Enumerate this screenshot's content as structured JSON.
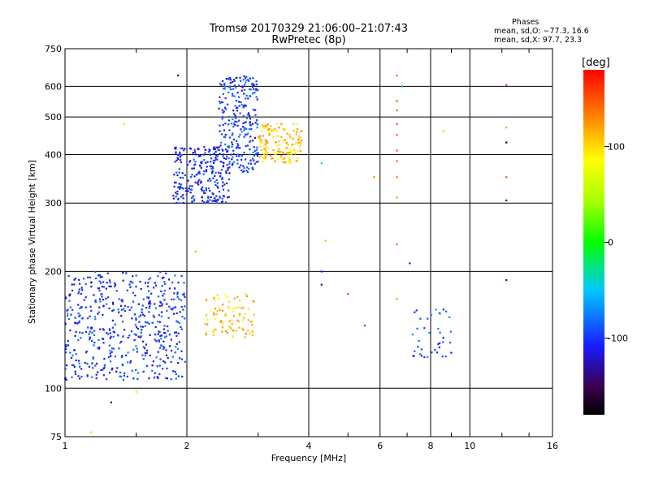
{
  "header": {
    "title": "Tromsø 20170329 21:06:00–21:07:43",
    "subtitle": "RwPretec (8p)"
  },
  "phases_box": {
    "heading": "Phases",
    "line_o": "mean, sd,O: −77.3, 16.6",
    "line_x": "mean, sd,X:  97.7, 23.3"
  },
  "chart_data": {
    "type": "scatter",
    "title": "Tromsø 20170329 21:06:00–21:07:43",
    "subtitle": "RwPretec (8p)",
    "xlabel": "Frequency [MHz]",
    "ylabel": "Stationary phase Virtual Height [km]",
    "xscale": "log",
    "yscale": "log",
    "xlim": [
      1,
      16
    ],
    "ylim": [
      75,
      750
    ],
    "xticks": [
      1,
      2,
      4,
      6,
      8,
      10,
      16
    ],
    "xtick_labels": [
      "1",
      "2",
      "4",
      "6",
      "8",
      "10",
      "16"
    ],
    "yticks": [
      75,
      100,
      200,
      300,
      400,
      500,
      600,
      750
    ],
    "ytick_labels": [
      "75",
      "100",
      "200",
      "300",
      "400",
      "500",
      "600",
      "750"
    ],
    "grid": true,
    "colorbar": {
      "label": "[deg]",
      "range": [
        -180,
        180
      ],
      "ticks": [
        100,
        0,
        -100
      ],
      "tick_labels": [
        "100",
        "0",
        "-100"
      ]
    },
    "clusters": [
      {
        "freq_range": [
          1.0,
          1.98
        ],
        "height_range": [
          105,
          200
        ],
        "phase": -100,
        "count": 520
      },
      {
        "freq_range": [
          1.85,
          2.55
        ],
        "height_range": [
          300,
          420
        ],
        "phase": -105,
        "count": 260
      },
      {
        "freq_range": [
          2.4,
          3.0
        ],
        "height_range": [
          360,
          640
        ],
        "phase": -95,
        "count": 260
      },
      {
        "freq_range": [
          3.0,
          3.85
        ],
        "height_range": [
          380,
          480
        ],
        "phase": 105,
        "count": 150
      },
      {
        "freq_range": [
          2.2,
          2.95
        ],
        "height_range": [
          135,
          175
        ],
        "phase": 110,
        "count": 90
      },
      {
        "freq_range": [
          7.2,
          9.0
        ],
        "height_range": [
          120,
          160
        ],
        "phase": -90,
        "count": 40
      }
    ],
    "points": [
      {
        "x": 6.6,
        "y": 640,
        "phase": 145
      },
      {
        "x": 6.6,
        "y": 550,
        "phase": 150
      },
      {
        "x": 6.6,
        "y": 520,
        "phase": 145
      },
      {
        "x": 6.6,
        "y": 480,
        "phase": 150
      },
      {
        "x": 6.6,
        "y": 450,
        "phase": 145
      },
      {
        "x": 6.6,
        "y": 410,
        "phase": 150
      },
      {
        "x": 6.6,
        "y": 385,
        "phase": 145
      },
      {
        "x": 6.6,
        "y": 350,
        "phase": 140
      },
      {
        "x": 6.6,
        "y": 310,
        "phase": 120
      },
      {
        "x": 6.6,
        "y": 235,
        "phase": 145
      },
      {
        "x": 6.6,
        "y": 170,
        "phase": 130
      },
      {
        "x": 12.3,
        "y": 605,
        "phase": 160
      },
      {
        "x": 12.3,
        "y": 470,
        "phase": 20
      },
      {
        "x": 12.3,
        "y": 430,
        "phase": -170
      },
      {
        "x": 12.3,
        "y": 350,
        "phase": 150
      },
      {
        "x": 12.3,
        "y": 305,
        "phase": -140
      },
      {
        "x": 12.3,
        "y": 190,
        "phase": -130
      },
      {
        "x": 1.9,
        "y": 640,
        "phase": -140
      },
      {
        "x": 1.4,
        "y": 480,
        "phase": 100
      },
      {
        "x": 2.1,
        "y": 225,
        "phase": 120
      },
      {
        "x": 4.4,
        "y": 240,
        "phase": 110
      },
      {
        "x": 4.3,
        "y": 200,
        "phase": -110
      },
      {
        "x": 4.3,
        "y": 185,
        "phase": -130
      },
      {
        "x": 5.0,
        "y": 175,
        "phase": 160
      },
      {
        "x": 5.5,
        "y": 145,
        "phase": -90
      },
      {
        "x": 5.8,
        "y": 350,
        "phase": 130
      },
      {
        "x": 7.1,
        "y": 210,
        "phase": -120
      },
      {
        "x": 4.3,
        "y": 380,
        "phase": -40
      },
      {
        "x": 1.3,
        "y": 92,
        "phase": -140
      },
      {
        "x": 1.5,
        "y": 98,
        "phase": 100
      },
      {
        "x": 1.16,
        "y": 77,
        "phase": 100
      },
      {
        "x": 6.8,
        "y": 600,
        "phase": -60
      },
      {
        "x": 8.6,
        "y": 460,
        "phase": 110
      }
    ]
  }
}
